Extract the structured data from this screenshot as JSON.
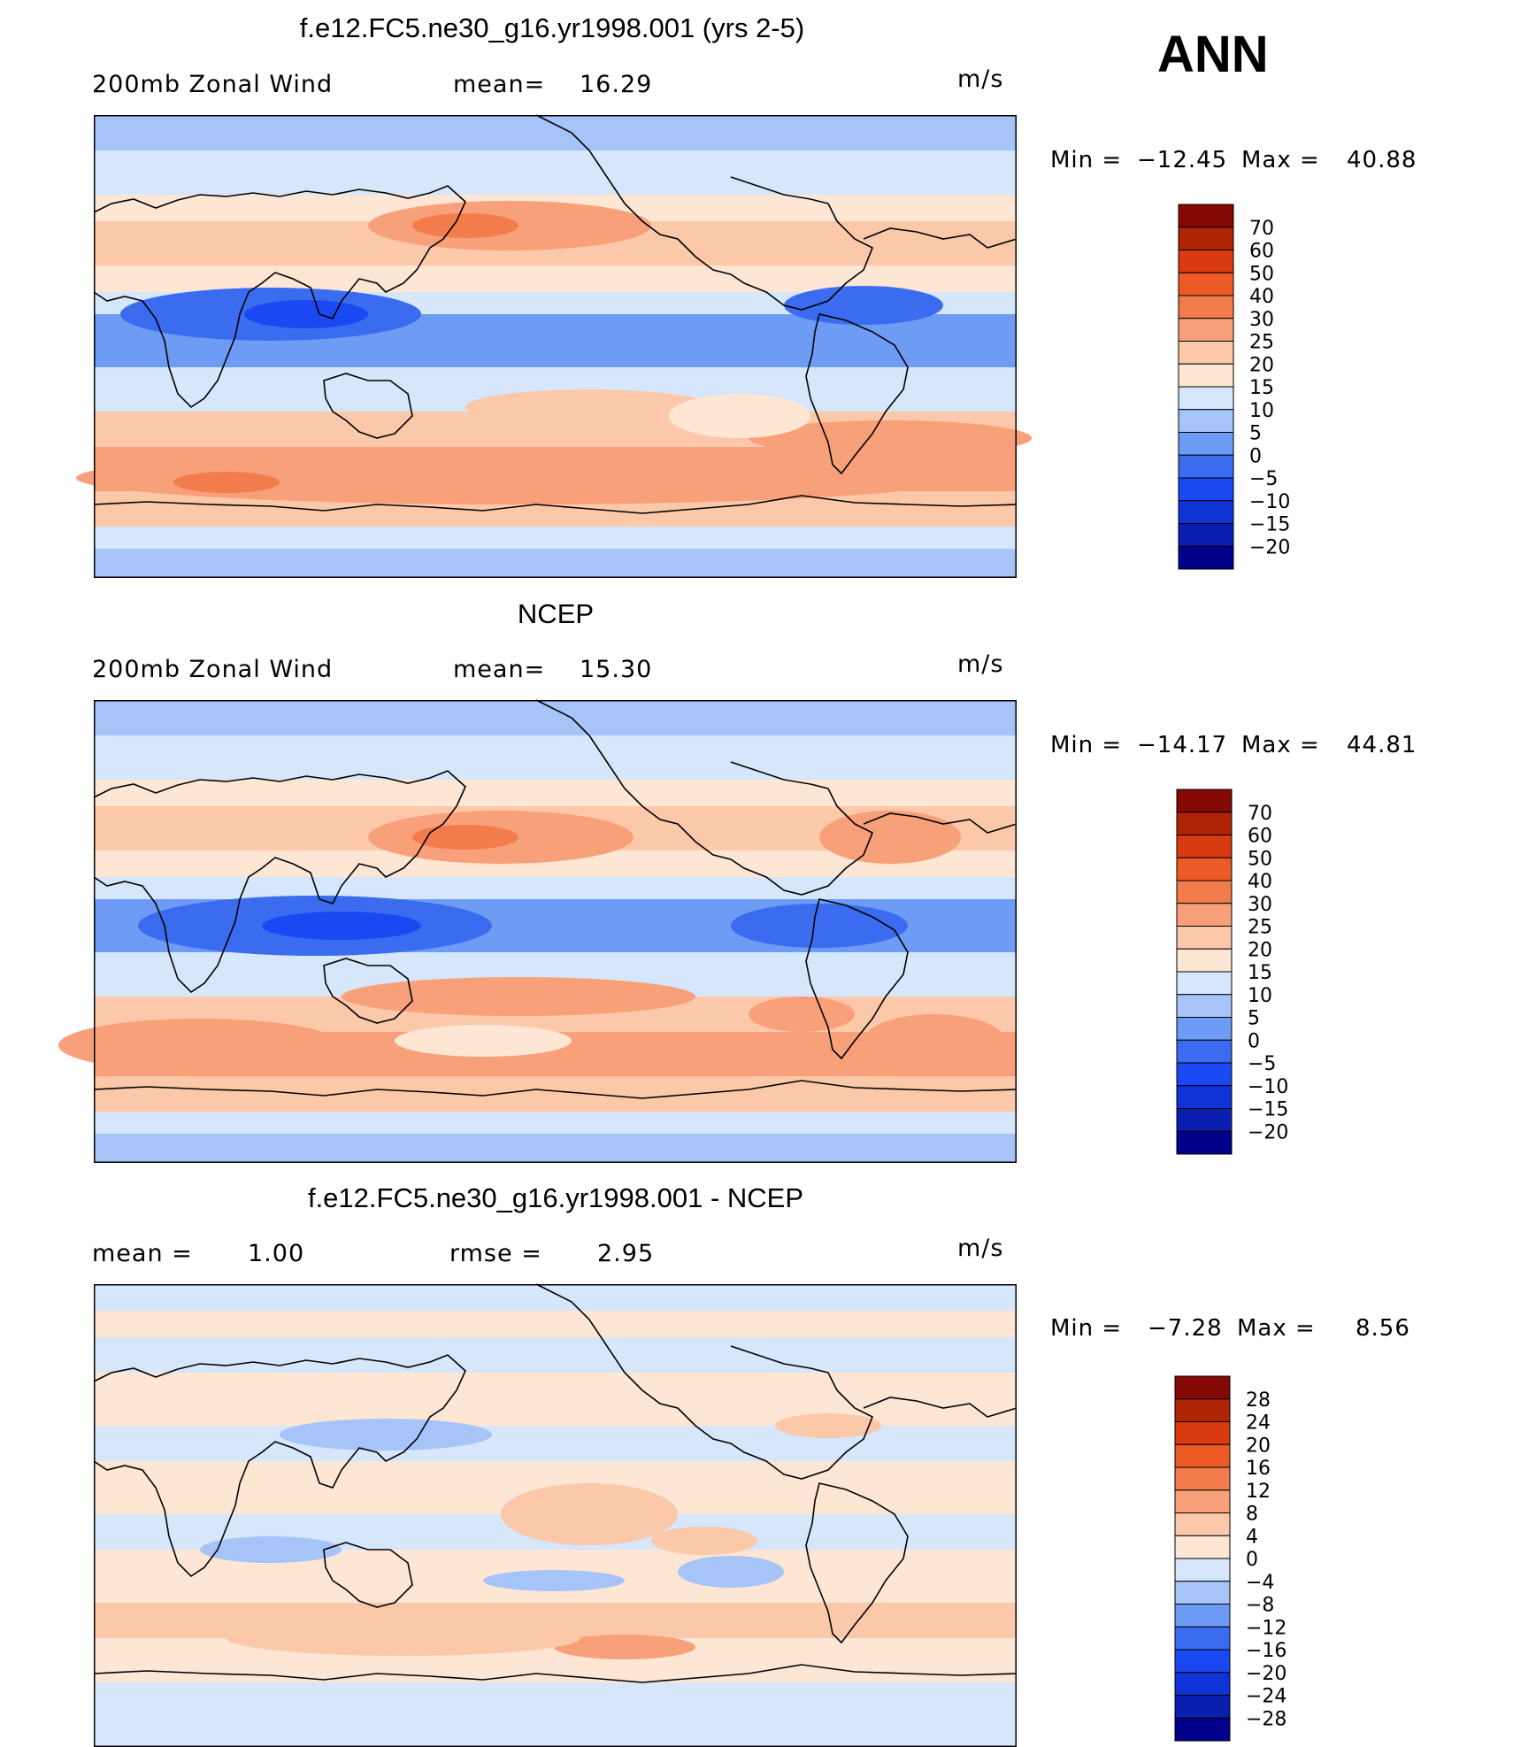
{
  "season": "ANN",
  "colors": {
    "wind": [
      "#00008b",
      "#0a1fb0",
      "#0f33d6",
      "#1a48f2",
      "#3b6cf0",
      "#6e9cf5",
      "#a6c4f8",
      "#d6e6fb",
      "#fde6d4",
      "#fcc8aa",
      "#f8a07a",
      "#f37c4c",
      "#ec5a26",
      "#d93a10",
      "#b02406",
      "#850a05"
    ],
    "diff": [
      "#00008b",
      "#0a1fb0",
      "#0f33d6",
      "#1a48f2",
      "#3b6cf0",
      "#6e9cf5",
      "#a6c4f8",
      "#d6e6fb",
      "#fde6d4",
      "#fcc8aa",
      "#f8a07a",
      "#f37c4c",
      "#ec5a26",
      "#d93a10",
      "#b02406",
      "#850a05"
    ]
  },
  "panels": [
    {
      "id": "model",
      "title": "f.e12.FC5.ne30_g16.yr1998.001 (yrs 2-5)",
      "left_label": "200mb Zonal Wind",
      "mid_label": "mean=",
      "mid_value": "16.29",
      "units": "m/s",
      "min_label": "Min =",
      "min_value": "−12.45",
      "max_label": "Max =",
      "max_value": "40.88",
      "colorbar_labels": [
        "70",
        "60",
        "50",
        "40",
        "30",
        "25",
        "20",
        "15",
        "10",
        "5",
        "0",
        "−5",
        "−10",
        "−15",
        "−20"
      ]
    },
    {
      "id": "obs",
      "title": "NCEP",
      "left_label": "200mb Zonal Wind",
      "mid_label": "mean=",
      "mid_value": "15.30",
      "units": "m/s",
      "min_label": "Min =",
      "min_value": "−14.17",
      "max_label": "Max =",
      "max_value": "44.81",
      "colorbar_labels": [
        "70",
        "60",
        "50",
        "40",
        "30",
        "25",
        "20",
        "15",
        "10",
        "5",
        "0",
        "−5",
        "−10",
        "−15",
        "−20"
      ]
    },
    {
      "id": "diff",
      "title": "f.e12.FC5.ne30_g16.yr1998.001 - NCEP",
      "left_label": "mean =",
      "left_value": "1.00",
      "mid_label": "rmse =",
      "mid_value": "2.95",
      "units": "m/s",
      "min_label": "Min =",
      "min_value": "−7.28",
      "max_label": "Max =",
      "max_value": "8.56",
      "colorbar_labels": [
        "28",
        "24",
        "20",
        "16",
        "12",
        "8",
        "4",
        "0",
        "−4",
        "−8",
        "−12",
        "−16",
        "−20",
        "−24",
        "−28"
      ]
    }
  ]
}
